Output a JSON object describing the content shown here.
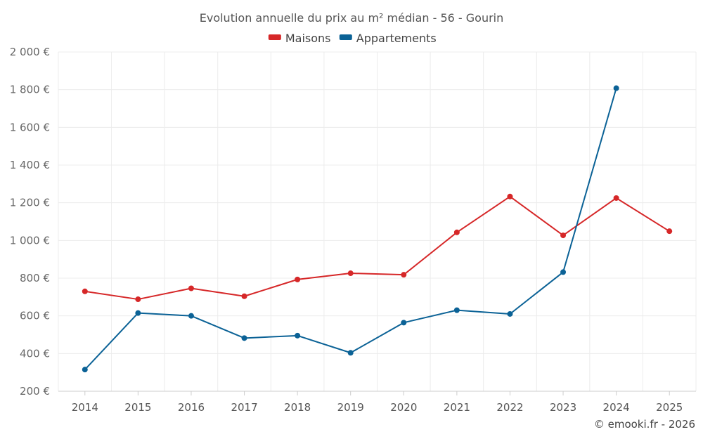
{
  "chart_data": {
    "type": "line",
    "title": "Evolution annuelle du prix au m² médian - 56 - Gourin",
    "categories": [
      "2014",
      "2015",
      "2016",
      "2017",
      "2018",
      "2019",
      "2020",
      "2021",
      "2022",
      "2023",
      "2024",
      "2025"
    ],
    "series": [
      {
        "name": "Maisons",
        "color": "#d62728",
        "values": [
          730,
          688,
          746,
          704,
          793,
          826,
          818,
          1043,
          1233,
          1027,
          1225,
          1049
        ]
      },
      {
        "name": "Appartements",
        "color": "#0b6296",
        "values": [
          315,
          615,
          600,
          482,
          495,
          404,
          564,
          630,
          610,
          832,
          1808,
          null
        ]
      }
    ],
    "ylim": [
      200,
      2000
    ],
    "yticks": [
      200,
      400,
      600,
      800,
      1000,
      1200,
      1400,
      1600,
      1800,
      2000
    ],
    "ytick_labels": [
      "200 €",
      "400 €",
      "600 €",
      "800 €",
      "1 000 €",
      "1 200 €",
      "1 400 €",
      "1 600 €",
      "1 800 €",
      "2 000 €"
    ],
    "legend_position": "top-center",
    "grid": true
  },
  "credit": "© emooki.fr - 2026"
}
